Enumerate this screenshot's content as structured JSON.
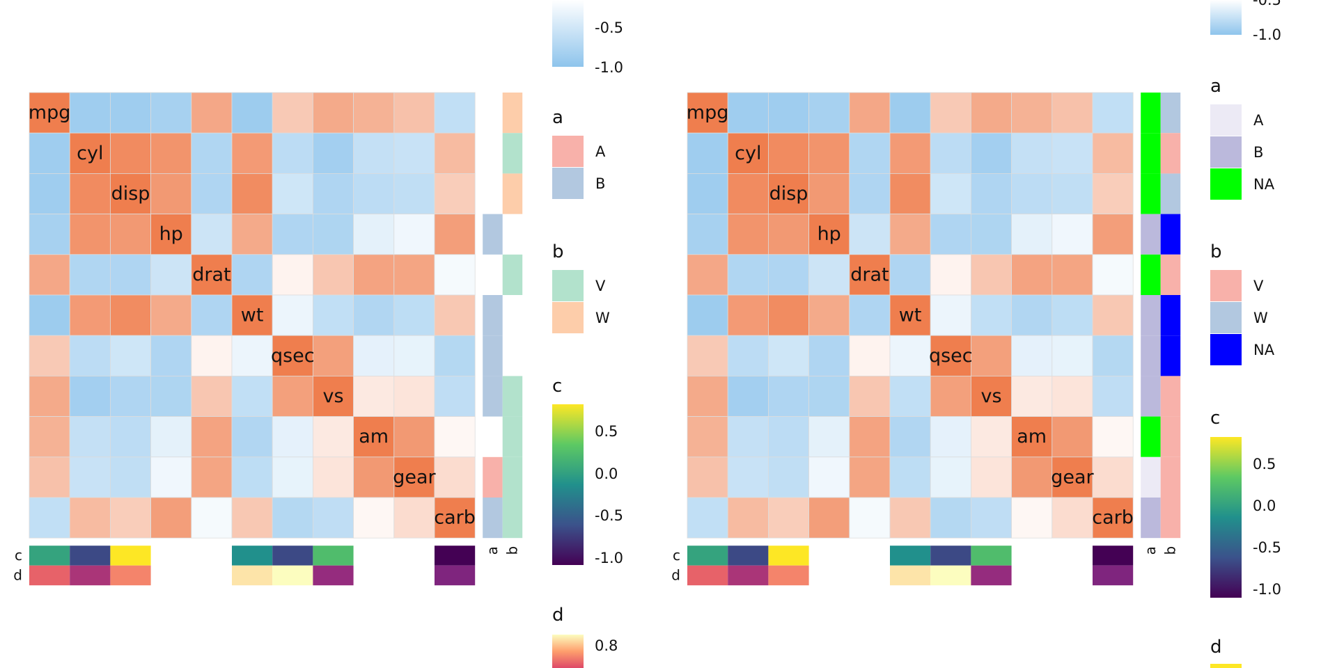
{
  "chart_data": {
    "type": "heatmap",
    "vars": [
      "mpg",
      "cyl",
      "disp",
      "hp",
      "drat",
      "wt",
      "qsec",
      "vs",
      "am",
      "gear",
      "carb"
    ],
    "corr": [
      [
        1.0,
        -0.85,
        -0.85,
        -0.78,
        0.68,
        -0.87,
        0.42,
        0.66,
        0.6,
        0.48,
        -0.55
      ],
      [
        -0.85,
        1.0,
        0.9,
        0.83,
        -0.7,
        0.78,
        -0.59,
        -0.81,
        -0.52,
        -0.49,
        0.53
      ],
      [
        -0.85,
        0.9,
        1.0,
        0.79,
        -0.71,
        0.89,
        -0.43,
        -0.71,
        -0.59,
        -0.56,
        0.39
      ],
      [
        -0.78,
        0.83,
        0.79,
        1.0,
        -0.45,
        0.66,
        -0.71,
        -0.72,
        -0.24,
        -0.13,
        0.75
      ],
      [
        0.68,
        -0.7,
        -0.71,
        -0.45,
        1.0,
        -0.71,
        0.09,
        0.44,
        0.71,
        0.7,
        -0.09
      ],
      [
        -0.87,
        0.78,
        0.89,
        0.66,
        -0.71,
        1.0,
        -0.17,
        -0.55,
        -0.69,
        -0.58,
        0.43
      ],
      [
        0.42,
        -0.59,
        -0.43,
        -0.71,
        0.09,
        -0.17,
        1.0,
        0.74,
        -0.23,
        -0.21,
        -0.66
      ],
      [
        0.66,
        -0.81,
        -0.71,
        -0.72,
        0.44,
        -0.55,
        0.74,
        1.0,
        0.17,
        0.21,
        -0.57
      ],
      [
        0.6,
        -0.52,
        -0.59,
        -0.24,
        0.71,
        -0.69,
        -0.23,
        0.17,
        1.0,
        0.79,
        0.06
      ],
      [
        0.48,
        -0.49,
        -0.56,
        -0.13,
        0.7,
        -0.58,
        -0.21,
        0.21,
        0.79,
        1.0,
        0.27
      ],
      [
        -0.55,
        0.53,
        0.39,
        0.75,
        -0.09,
        0.43,
        -0.66,
        -0.57,
        0.06,
        0.27,
        1.0
      ]
    ],
    "row_annotations": {
      "left_panel": {
        "a": [
          null,
          null,
          null,
          "B",
          null,
          "B",
          "B",
          "B",
          null,
          "A",
          "B"
        ],
        "b": [
          "W",
          "V",
          "W",
          null,
          "V",
          null,
          null,
          "V",
          "V",
          "V",
          "V"
        ]
      },
      "right_panel": {
        "a": [
          "NA",
          "NA",
          "NA",
          "B",
          "NA",
          "B",
          "B",
          "B",
          "NA",
          "A",
          "B"
        ],
        "b": [
          "W",
          "V",
          "W",
          "NA",
          "V",
          "NA",
          "NA",
          "V",
          "V",
          "V",
          "V"
        ]
      }
    },
    "col_annotations": {
      "c": [
        0.05,
        -0.6,
        0.8,
        null,
        null,
        -0.1,
        -0.6,
        0.25,
        null,
        null,
        -1.0
      ],
      "d": [
        0.25,
        -0.1,
        0.4,
        null,
        null,
        0.8,
        0.9,
        -0.2,
        null,
        null,
        -0.3
      ]
    },
    "legends": {
      "fill_ticks": [
        "-0.5",
        "-1.0"
      ],
      "fill_ticks_right": [
        "-0.5",
        "-1.0"
      ],
      "a": {
        "title": "a",
        "left": [
          "A",
          "B"
        ],
        "right": [
          "A",
          "B",
          "NA"
        ]
      },
      "b": {
        "title": "b",
        "left": [
          "V",
          "W"
        ],
        "right": [
          "V",
          "W",
          "NA"
        ]
      },
      "c": {
        "title": "c",
        "ticks": [
          "0.5",
          "0.0",
          "-0.5",
          "-1.0"
        ]
      },
      "d": {
        "title": "d",
        "ticks": [
          "0.8"
        ]
      }
    },
    "annotation_axis_labels": {
      "a": "a",
      "b": "b",
      "c": "c",
      "d": "d"
    },
    "colors": {
      "pos": "#ef7e4e",
      "neg": "#8ec4ec",
      "a_A": "#f8b1aa",
      "a_B": "#b2c8e0",
      "b_V": "#b2e2cc",
      "b_W": "#fdcdaa",
      "r_a_A": "#eceaf5",
      "r_a_B": "#bbb9dc",
      "r_NA": "#00ff00",
      "r_b_V": "#f8b1aa",
      "r_b_W": "#b2c8e0",
      "r_b_NA": "#0000ff"
    }
  }
}
